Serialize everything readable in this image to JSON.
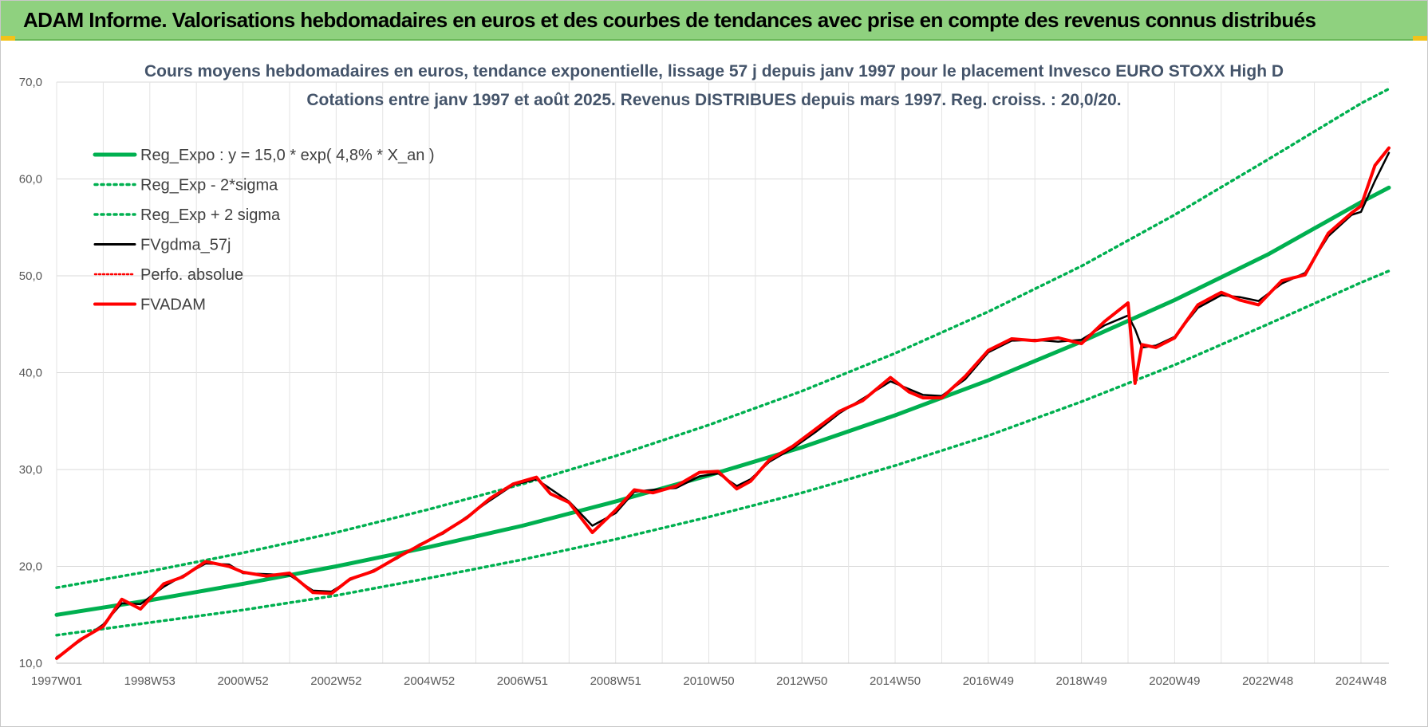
{
  "banner": {
    "title": "ADAM Informe. Valorisations hebdomadaires en euros et des courbes de tendances avec prise en compte des revenus connus distribués"
  },
  "chart_data": {
    "type": "line",
    "title": "Cours moyens hebdomadaires en euros, tendance exponentielle, lissage 57 j depuis janv 1997 pour le placement Invesco EURO STOXX High D",
    "subtitle": "Cotations entre janv 1997 et août 2025. Revenus DISTRIBUES depuis mars 1997. Reg. croiss. : 20,0/20.",
    "xlabel": "",
    "ylabel": "",
    "x_range": [
      1997.0,
      2025.6
    ],
    "ylim": [
      10,
      70
    ],
    "y_ticks": [
      10,
      20,
      30,
      40,
      50,
      60,
      70
    ],
    "y_tick_labels": [
      "10,0",
      "20,0",
      "30,0",
      "40,0",
      "50,0",
      "60,0",
      "70,0"
    ],
    "x_ticks": [
      {
        "label": "1997W01",
        "year": 1997.0
      },
      {
        "label": "1998W53",
        "year": 1999.0
      },
      {
        "label": "2000W52",
        "year": 2001.0
      },
      {
        "label": "2002W52",
        "year": 2003.0
      },
      {
        "label": "2004W52",
        "year": 2005.0
      },
      {
        "label": "2006W51",
        "year": 2007.0
      },
      {
        "label": "2008W51",
        "year": 2009.0
      },
      {
        "label": "2010W50",
        "year": 2011.0
      },
      {
        "label": "2012W50",
        "year": 2013.0
      },
      {
        "label": "2014W50",
        "year": 2015.0
      },
      {
        "label": "2016W49",
        "year": 2017.0
      },
      {
        "label": "2018W49",
        "year": 2019.0
      },
      {
        "label": "2020W49",
        "year": 2021.0
      },
      {
        "label": "2022W48",
        "year": 2023.0
      },
      {
        "label": "2024W48",
        "year": 2025.0
      }
    ],
    "grid": true,
    "legend_position": "top-left",
    "series": [
      {
        "name": "Reg_Expo : y = 15,0 * exp( 4,8% *  X_an )",
        "color": "#00b050",
        "style": "solid",
        "x": [
          1997.0,
          1999.0,
          2001.0,
          2003.0,
          2005.0,
          2007.0,
          2009.0,
          2011.0,
          2013.0,
          2015.0,
          2017.0,
          2019.0,
          2021.0,
          2023.0,
          2025.0,
          2025.6
        ],
        "values": [
          15.0,
          16.5,
          18.2,
          20.0,
          22.0,
          24.2,
          26.7,
          29.4,
          32.3,
          35.6,
          39.2,
          43.2,
          47.5,
          52.2,
          57.6,
          59.1
        ]
      },
      {
        "name": "Reg_Exp - 2*sigma",
        "color": "#00b050",
        "style": "dotted",
        "x": [
          1997.0,
          1999.0,
          2001.0,
          2003.0,
          2005.0,
          2007.0,
          2009.0,
          2011.0,
          2013.0,
          2015.0,
          2017.0,
          2019.0,
          2021.0,
          2023.0,
          2025.0,
          2025.6
        ],
        "values": [
          12.9,
          14.2,
          15.5,
          17.0,
          18.8,
          20.7,
          22.8,
          25.1,
          27.6,
          30.4,
          33.5,
          37.0,
          40.8,
          45.0,
          49.3,
          50.5
        ]
      },
      {
        "name": "Reg_Exp + 2 sigma",
        "color": "#00b050",
        "style": "dotted",
        "x": [
          1997.0,
          1999.0,
          2001.0,
          2003.0,
          2005.0,
          2007.0,
          2009.0,
          2011.0,
          2013.0,
          2015.0,
          2017.0,
          2019.0,
          2021.0,
          2023.0,
          2025.0,
          2025.6
        ],
        "values": [
          17.8,
          19.5,
          21.4,
          23.5,
          25.9,
          28.5,
          31.4,
          34.6,
          38.1,
          42.0,
          46.3,
          51.0,
          56.3,
          62.0,
          67.8,
          69.3
        ]
      },
      {
        "name": "FVgdma_57j",
        "color": "#000000",
        "style": "solid",
        "x": [
          1997.0,
          1997.5,
          1998.0,
          1998.4,
          1998.8,
          1999.3,
          1999.7,
          2000.2,
          2000.7,
          2001.0,
          2001.5,
          2002.0,
          2002.5,
          2002.9,
          2003.3,
          2003.8,
          2004.3,
          2004.8,
          2005.3,
          2005.8,
          2006.3,
          2006.8,
          2007.3,
          2007.6,
          2008.0,
          2008.5,
          2009.0,
          2009.4,
          2009.8,
          2010.3,
          2010.8,
          2011.2,
          2011.6,
          2011.9,
          2012.3,
          2012.8,
          2013.3,
          2013.8,
          2014.3,
          2014.9,
          2015.3,
          2015.6,
          2016.0,
          2016.5,
          2017.0,
          2017.5,
          2018.0,
          2018.5,
          2019.0,
          2019.5,
          2020.0,
          2020.15,
          2020.3,
          2020.6,
          2021.0,
          2021.5,
          2022.0,
          2022.4,
          2022.8,
          2023.3,
          2023.8,
          2024.3,
          2024.8,
          2025.0,
          2025.3,
          2025.6
        ],
        "values": [
          10.6,
          12.3,
          14.0,
          16.2,
          16.1,
          17.9,
          19.0,
          20.3,
          20.2,
          19.3,
          19.2,
          19.1,
          17.5,
          17.4,
          18.6,
          19.6,
          20.8,
          22.3,
          23.4,
          25.1,
          26.8,
          28.4,
          29.0,
          28.0,
          26.7,
          24.2,
          25.5,
          27.7,
          27.9,
          28.1,
          29.3,
          29.6,
          28.3,
          29.0,
          30.8,
          32.2,
          33.9,
          35.8,
          37.3,
          39.1,
          38.3,
          37.7,
          37.6,
          39.3,
          42.1,
          43.3,
          43.4,
          43.2,
          43.4,
          44.9,
          45.9,
          44.5,
          42.6,
          42.8,
          43.7,
          46.7,
          48.0,
          47.8,
          47.4,
          49.2,
          50.3,
          54.1,
          56.3,
          56.6,
          59.8,
          62.7
        ]
      },
      {
        "name": "Perfo. absolue",
        "color": "#ff0000",
        "style": "dotted",
        "x": [
          1997.0,
          1997.5,
          1998.0,
          1998.4,
          1998.8,
          1999.3,
          1999.7,
          2000.2,
          2000.7,
          2001.0,
          2001.5,
          2002.0,
          2002.5,
          2002.9,
          2003.3,
          2003.8,
          2004.3,
          2004.8,
          2005.3,
          2005.8,
          2006.3,
          2006.8,
          2007.3,
          2007.6,
          2008.0,
          2008.5,
          2009.0,
          2009.4,
          2009.8,
          2010.3,
          2010.8,
          2011.2,
          2011.6,
          2011.9,
          2012.3,
          2012.8,
          2013.3,
          2013.8,
          2014.3,
          2014.9,
          2015.3,
          2015.6,
          2016.0,
          2016.5,
          2017.0,
          2017.5,
          2018.0,
          2018.5,
          2019.0,
          2019.5,
          2020.0,
          2020.15,
          2020.3,
          2020.6,
          2021.0,
          2021.5,
          2022.0,
          2022.4,
          2022.8,
          2023.3,
          2023.8,
          2024.3,
          2024.8,
          2025.0,
          2025.3,
          2025.6
        ],
        "values": [
          10.5,
          12.4,
          13.8,
          16.6,
          15.6,
          18.2,
          18.9,
          20.5,
          20.0,
          19.4,
          19.0,
          19.3,
          17.3,
          17.2,
          18.7,
          19.5,
          20.9,
          22.2,
          23.5,
          25.0,
          27.0,
          28.5,
          29.2,
          27.5,
          26.6,
          23.5,
          25.8,
          27.9,
          27.6,
          28.3,
          29.7,
          29.8,
          28.0,
          28.8,
          31.0,
          32.4,
          34.2,
          36.0,
          37.1,
          39.5,
          38.0,
          37.4,
          37.4,
          39.6,
          42.3,
          43.5,
          43.3,
          43.6,
          43.0,
          45.3,
          47.2,
          38.9,
          42.9,
          42.6,
          43.6,
          47.0,
          48.3,
          47.5,
          47.0,
          49.5,
          50.1,
          54.4,
          56.5,
          57.2,
          61.4,
          63.2
        ]
      },
      {
        "name": "FVADAM",
        "color": "#ff0000",
        "style": "solid",
        "x": [
          1997.0,
          1997.5,
          1998.0,
          1998.4,
          1998.8,
          1999.3,
          1999.7,
          2000.2,
          2000.7,
          2001.0,
          2001.5,
          2002.0,
          2002.5,
          2002.9,
          2003.3,
          2003.8,
          2004.3,
          2004.8,
          2005.3,
          2005.8,
          2006.3,
          2006.8,
          2007.3,
          2007.6,
          2008.0,
          2008.5,
          2009.0,
          2009.4,
          2009.8,
          2010.3,
          2010.8,
          2011.2,
          2011.6,
          2011.9,
          2012.3,
          2012.8,
          2013.3,
          2013.8,
          2014.3,
          2014.9,
          2015.3,
          2015.6,
          2016.0,
          2016.5,
          2017.0,
          2017.5,
          2018.0,
          2018.5,
          2019.0,
          2019.5,
          2020.0,
          2020.15,
          2020.3,
          2020.6,
          2021.0,
          2021.5,
          2022.0,
          2022.4,
          2022.8,
          2023.3,
          2023.8,
          2024.3,
          2024.8,
          2025.0,
          2025.3,
          2025.6
        ],
        "values": [
          10.5,
          12.4,
          13.8,
          16.6,
          15.6,
          18.2,
          18.9,
          20.5,
          20.0,
          19.4,
          19.0,
          19.3,
          17.3,
          17.2,
          18.7,
          19.5,
          20.9,
          22.2,
          23.5,
          25.0,
          27.0,
          28.5,
          29.2,
          27.5,
          26.6,
          23.5,
          25.8,
          27.9,
          27.6,
          28.3,
          29.7,
          29.8,
          28.0,
          28.8,
          31.0,
          32.4,
          34.2,
          36.0,
          37.1,
          39.5,
          38.0,
          37.4,
          37.4,
          39.6,
          42.3,
          43.5,
          43.3,
          43.6,
          43.0,
          45.3,
          47.2,
          38.9,
          42.9,
          42.6,
          43.6,
          47.0,
          48.3,
          47.5,
          47.0,
          49.5,
          50.1,
          54.4,
          56.5,
          57.2,
          61.4,
          63.2
        ]
      }
    ]
  }
}
